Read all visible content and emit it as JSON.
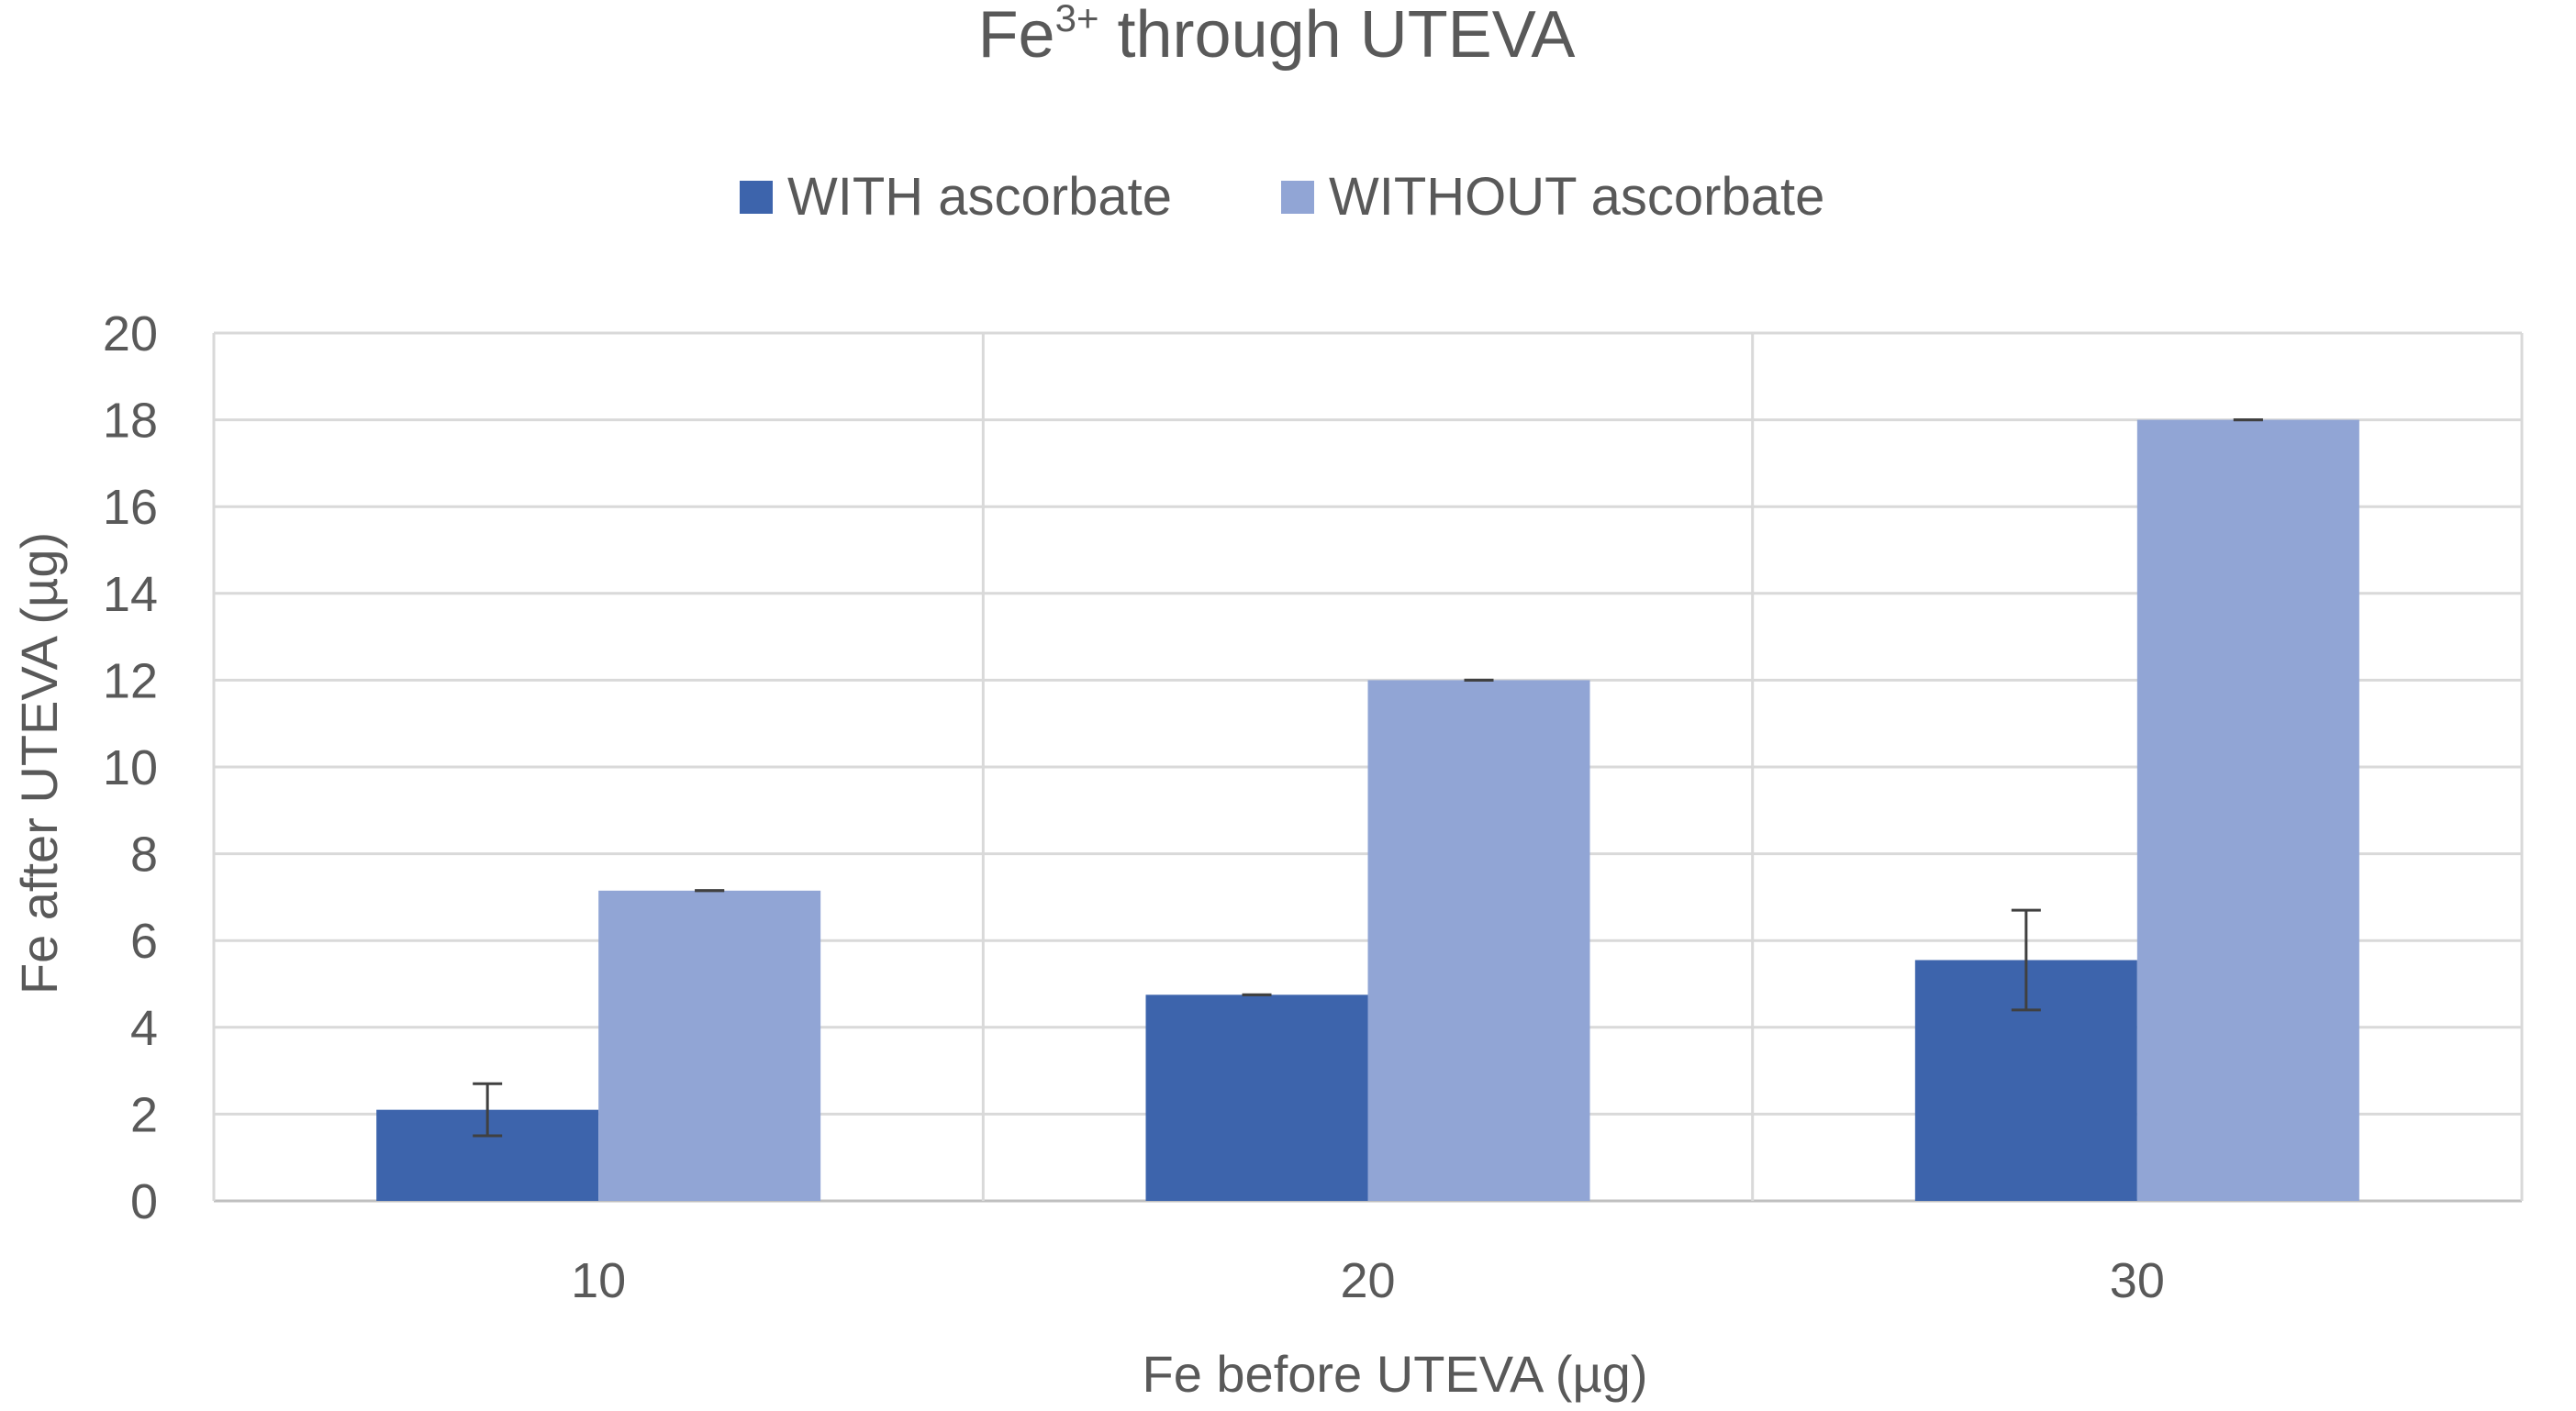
{
  "chart_data": {
    "type": "bar",
    "title": {
      "main": "Fe",
      "superscript": "3+",
      "rest": " through UTEVA"
    },
    "xlabel": "Fe before UTEVA (µg)",
    "ylabel": "Fe after UTEVA (µg)",
    "categories": [
      "10",
      "20",
      "30"
    ],
    "ylim": [
      0,
      20
    ],
    "y_ticks": [
      0,
      2,
      4,
      6,
      8,
      10,
      12,
      14,
      16,
      18,
      20
    ],
    "grid": true,
    "legend_position": "top-center",
    "series": [
      {
        "name": "WITH ascorbate",
        "color": "#3D64AC",
        "values": [
          2.1,
          4.75,
          5.55
        ],
        "errors": [
          0.6,
          0.0,
          1.15
        ]
      },
      {
        "name": "WITHOUT ascorbate",
        "color": "#91A5D5",
        "values": [
          7.15,
          12.0,
          18.0
        ],
        "errors": [
          0.0,
          0.0,
          0.0
        ]
      }
    ]
  }
}
